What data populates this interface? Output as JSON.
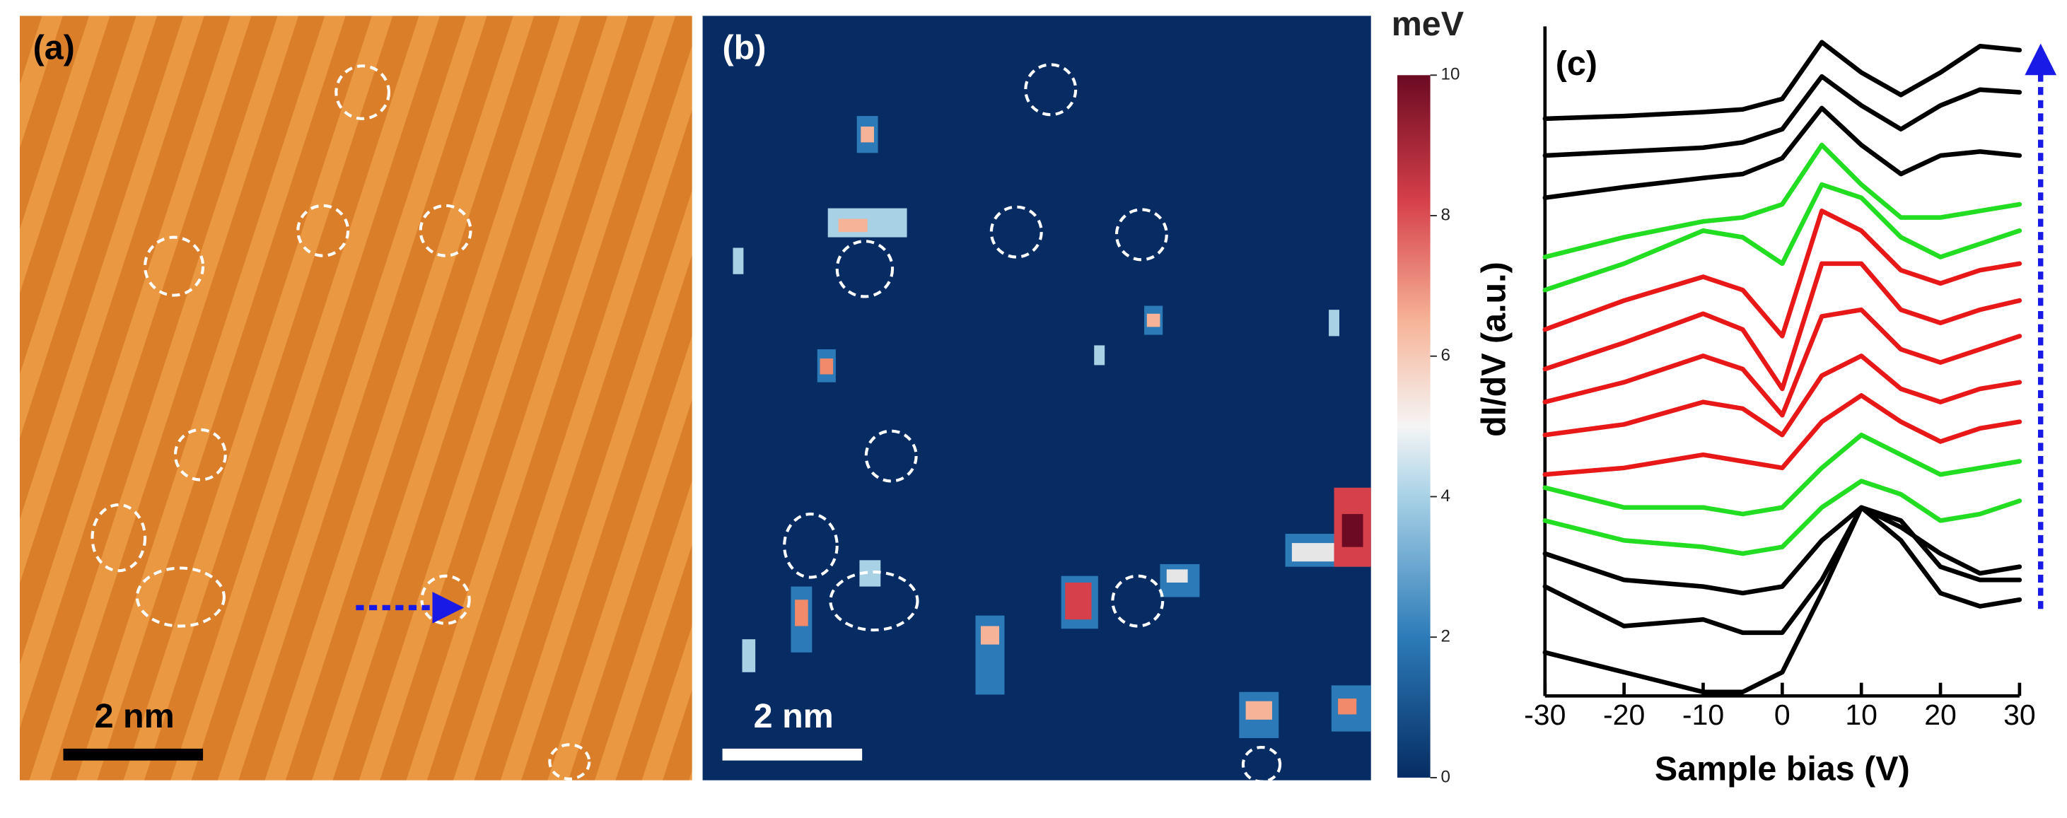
{
  "panel_a": {
    "label": "(a)",
    "scale_bar": "2 nm"
  },
  "panel_b": {
    "label": "(b)",
    "scale_bar": "2 nm",
    "colorbar": {
      "label": "meV",
      "lim": [
        0,
        10
      ],
      "ticks": [
        0,
        2,
        4,
        6,
        8,
        10
      ]
    }
  },
  "chart_data": {
    "type": "line",
    "label": "(c)",
    "x_label": "Sample bias (V)",
    "y_label": "dI/dV (a.u.)",
    "x": [
      -30,
      -20,
      -10,
      -5,
      0,
      5,
      10,
      15,
      20,
      25,
      30
    ],
    "xlim": [
      -30,
      30
    ],
    "xticks": [
      -30,
      -20,
      -10,
      0,
      10,
      20,
      30
    ],
    "ylim": [
      0,
      508
    ],
    "series": [
      {
        "color": "#000000",
        "values": [
          438,
          440,
          443,
          445,
          453,
          496,
          473,
          456,
          473,
          493,
          490
        ]
      },
      {
        "color": "#000000",
        "values": [
          410,
          413,
          416,
          420,
          430,
          470,
          448,
          430,
          448,
          460,
          458
        ]
      },
      {
        "color": "#000000",
        "values": [
          378,
          386,
          393,
          396,
          408,
          446,
          418,
          396,
          410,
          413,
          410
        ]
      },
      {
        "color": "#22dd22",
        "values": [
          333,
          348,
          360,
          363,
          373,
          418,
          388,
          363,
          363,
          368,
          373
        ]
      },
      {
        "color": "#22dd22",
        "values": [
          308,
          328,
          353,
          348,
          328,
          388,
          378,
          348,
          333,
          343,
          353
        ]
      },
      {
        "color": "#e81818",
        "values": [
          278,
          300,
          318,
          308,
          273,
          368,
          353,
          323,
          313,
          323,
          328
        ]
      },
      {
        "color": "#e81818",
        "values": [
          248,
          268,
          290,
          278,
          233,
          328,
          328,
          293,
          283,
          293,
          300
        ]
      },
      {
        "color": "#e81818",
        "values": [
          223,
          238,
          258,
          248,
          213,
          288,
          293,
          263,
          253,
          263,
          273
        ]
      },
      {
        "color": "#e81818",
        "values": [
          198,
          206,
          223,
          218,
          198,
          243,
          258,
          233,
          223,
          233,
          238
        ]
      },
      {
        "color": "#e81818",
        "values": [
          168,
          173,
          183,
          178,
          173,
          208,
          228,
          208,
          193,
          203,
          208
        ]
      },
      {
        "color": "#22dd22",
        "values": [
          158,
          143,
          143,
          138,
          143,
          173,
          198,
          183,
          168,
          173,
          178
        ]
      },
      {
        "color": "#22dd22",
        "values": [
          133,
          118,
          113,
          108,
          113,
          143,
          163,
          153,
          133,
          138,
          148
        ]
      },
      {
        "color": "#000000",
        "values": [
          108,
          88,
          83,
          78,
          83,
          118,
          143,
          128,
          108,
          93,
          98
        ]
      },
      {
        "color": "#000000",
        "values": [
          83,
          53,
          58,
          48,
          48,
          88,
          143,
          118,
          78,
          68,
          73
        ]
      },
      {
        "color": "#000000",
        "values": [
          33,
          18,
          3,
          3,
          18,
          78,
          143,
          133,
          98,
          88,
          88
        ]
      }
    ]
  }
}
